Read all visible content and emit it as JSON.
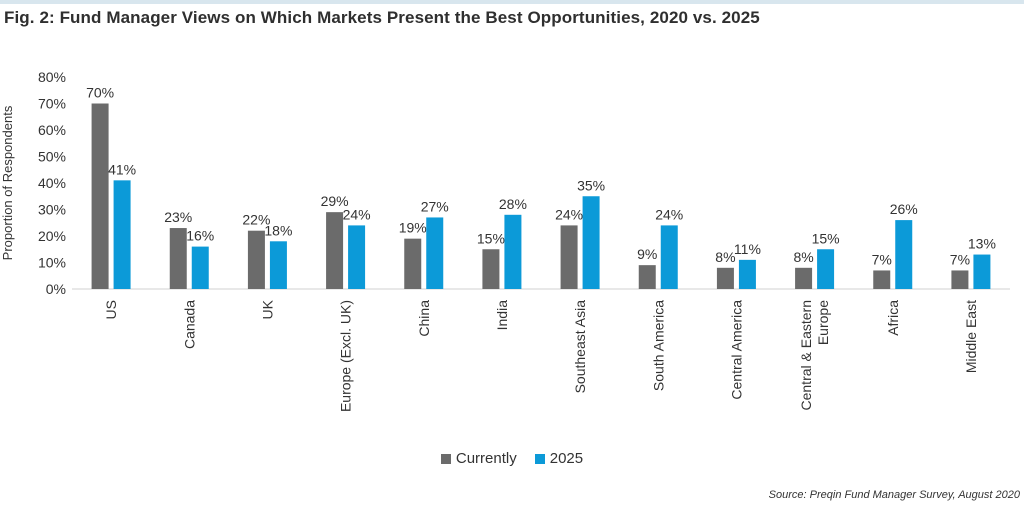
{
  "title": "Fig. 2: Fund Manager Views on Which Markets Present the Best Opportunities, 2020 vs. 2025",
  "source": "Source: Preqin Fund Manager Survey, August 2020",
  "colors": {
    "currently": "#6b6b6b",
    "y2025": "#0c9ad8"
  },
  "chart_data": {
    "type": "bar",
    "title": "Fig. 2: Fund Manager Views on Which Markets Present the Best Opportunities, 2020 vs. 2025",
    "xlabel": "",
    "ylabel": "Proportion of Respondents",
    "ylim": [
      0,
      80
    ],
    "yticks": [
      "0%",
      "10%",
      "20%",
      "30%",
      "40%",
      "50%",
      "60%",
      "70%",
      "80%"
    ],
    "categories": [
      "US",
      "Canada",
      "UK",
      "Europe (Excl. UK)",
      "China",
      "India",
      "Southeast Asia",
      "South America",
      "Central America",
      "Central & Eastern Europe",
      "Africa",
      "Middle East"
    ],
    "category_lines": [
      [
        "US"
      ],
      [
        "Canada"
      ],
      [
        "UK"
      ],
      [
        "Europe (Excl. UK)"
      ],
      [
        "China"
      ],
      [
        "India"
      ],
      [
        "Southeast Asia"
      ],
      [
        "South America"
      ],
      [
        "Central America"
      ],
      [
        "Central & Eastern",
        "Europe"
      ],
      [
        "Africa"
      ],
      [
        "Middle East"
      ]
    ],
    "series": [
      {
        "name": "Currently",
        "values": [
          70,
          23,
          22,
          29,
          19,
          15,
          24,
          9,
          8,
          8,
          7,
          7
        ],
        "labels": [
          "70%",
          "23%",
          "22%",
          "29%",
          "19%",
          "15%",
          "24%",
          "9%",
          "8%",
          "8%",
          "7%",
          "7%"
        ]
      },
      {
        "name": "2025",
        "values": [
          41,
          16,
          18,
          24,
          27,
          28,
          35,
          24,
          11,
          15,
          26,
          13
        ],
        "labels": [
          "41%",
          "16%",
          "18%",
          "24%",
          "27%",
          "28%",
          "35%",
          "24%",
          "11%",
          "15%",
          "26%",
          "13%"
        ]
      }
    ],
    "legend_position": "bottom-center",
    "grid": false
  }
}
